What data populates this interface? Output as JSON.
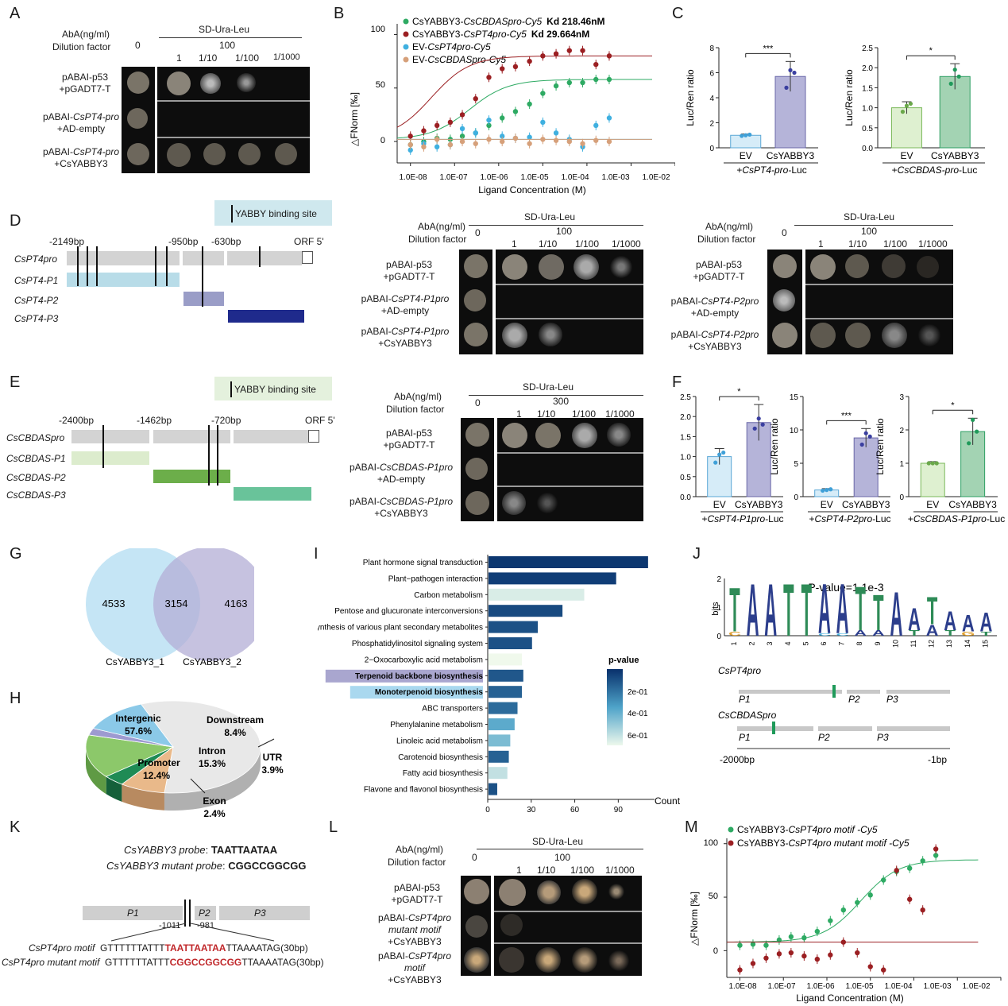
{
  "panel_labels": {
    "A": "A",
    "B": "B",
    "C": "C",
    "D": "D",
    "E": "E",
    "F": "F",
    "G": "G",
    "H": "H",
    "I": "I",
    "J": "J",
    "K": "K",
    "L": "L",
    "M": "M"
  },
  "yeast_headers": {
    "aba": "AbA(ng/ml)",
    "dil": "Dilution factor",
    "media": "SD-Ura-Leu",
    "d0": "0",
    "d1": "1",
    "d2": "1/10",
    "d3": "1/100",
    "d4": "1/1000"
  },
  "panelA": {
    "conc": "100",
    "r1a": "pABAI-p53",
    "r1b": "+pGADT7-T",
    "r2a_pre": "pABAI-",
    "r2a_it": "CsPT4-pro",
    "r2b": "+AD-empty",
    "r3a_pre": "pABAI-",
    "r3a_it": "CsPT4-pro",
    "r3b": "+CsYABBY3"
  },
  "panelB": {
    "legend": [
      {
        "prefix": "CsYABBY3-",
        "it": "CsCBDASpro-Cy5",
        "kd": "Kd 218.46nM",
        "color": "#2eaa63"
      },
      {
        "prefix": "CsYABBY3-",
        "it": "CsPT4pro-Cy5",
        "kd": "Kd 29.664nM",
        "color": "#9b1f22"
      },
      {
        "prefix": "EV-",
        "it": "CsPT4pro-Cy5",
        "kd": "",
        "color": "#3fb0e0"
      },
      {
        "prefix": "EV-",
        "it": "CsCBDASpro-Cy5",
        "kd": "",
        "color": "#d6a07a"
      }
    ],
    "ylabel": "△FNorm [‰]",
    "xlabel": "Ligand Concentration (M)",
    "yticks": [
      "0",
      "50",
      "100"
    ],
    "xticks": [
      "1.0E-08",
      "1.0E-07",
      "1.0E-06",
      "1.0E-05",
      "1.0E-04",
      "1.0E-03",
      "1.0E-02"
    ]
  },
  "panelC": {
    "ylabel": "Luc/Ren ratio",
    "ev": "EV",
    "yab": "CsYABBY3",
    "c1": {
      "sig": "***",
      "yticks": [
        "0",
        "2",
        "4",
        "6",
        "8"
      ],
      "sub_pre": "+",
      "sub_it": "CsPT4-pro",
      "sub_post": "-Luc"
    },
    "c2": {
      "sig": "*",
      "yticks": [
        "0.0",
        "0.5",
        "1.0",
        "1.5",
        "2.0",
        "2.5"
      ],
      "sub_pre": "+",
      "sub_it": "CsCBDAS-pro",
      "sub_post": "-Luc"
    }
  },
  "panelD": {
    "binding": "YABBY binding site",
    "p1": "-2149bp",
    "p2": "-950bp",
    "p3": "-630bp",
    "orf": "ORF 5'",
    "row0": "CsPT4pro",
    "row1": "CsPT4-P1",
    "row2": "CsPT4-P2",
    "row3": "CsPT4-P3",
    "conc": "100",
    "y1": {
      "r2a_pre": "pABAI-",
      "r2a_it": "CsPT4-P1pro",
      "r3a_pre": "pABAI-",
      "r3a_it": "CsPT4-P1pro"
    },
    "y2": {
      "r2a_pre": "pABAI-",
      "r2a_it": "CsPT4-P2pro",
      "r3a_pre": "pABAI-",
      "r3a_it": "CsPT4-P2pro"
    }
  },
  "panelE": {
    "binding": "YABBY binding site",
    "p1": "-2400bp",
    "p2": "-1462bp",
    "p3": "-720bp",
    "orf": "ORF 5'",
    "row0": "CsCBDASpro",
    "row1": "CsCBDAS-P1",
    "row2": "CsCBDAS-P2",
    "row3": "CsCBDAS-P3",
    "conc": "300",
    "r2a_pre": "pABAI-",
    "r2a_it": "CsCBDAS-P1pro",
    "r3a_pre": "pABAI-",
    "r3a_it": "CsCBDAS-P1pro"
  },
  "panelF": {
    "f1": {
      "sig": "*",
      "yticks": [
        "0.0",
        "0.5",
        "1.0",
        "1.5",
        "2.0",
        "2.5"
      ],
      "sub_it": "CsPT4-P1pro"
    },
    "f2": {
      "sig": "***",
      "yticks": [
        "0",
        "5",
        "10",
        "15"
      ],
      "sub_it": "CsPT4-P2pro"
    },
    "f3": {
      "sig": "*",
      "yticks": [
        "0",
        "1",
        "2",
        "3"
      ],
      "sub_it": "CsCBDAS-P1pro"
    }
  },
  "panelG": {
    "left": "4533",
    "mid": "3154",
    "right": "4163",
    "l1": "CsYABBY3_1",
    "l2": "CsYABBY3_2"
  },
  "panelH": {
    "inter": "Intergenic",
    "inter_v": "57.6%",
    "down": "Downstream",
    "down_v": "8.4%",
    "intron": "Intron",
    "intron_v": "15.3%",
    "utr": "UTR",
    "utr_v": "3.9%",
    "prom": "Promoter",
    "prom_v": "12.4%",
    "exon": "Exon",
    "exon_v": "2.4%"
  },
  "panelI": {
    "xlabel": "Count",
    "legend_title": "p-value",
    "legend_ticks": [
      "2e-01",
      "4e-01",
      "6e-01"
    ],
    "xticks": [
      "0",
      "30",
      "60",
      "90"
    ]
  },
  "panelJ": {
    "title": "P-value=1.1e-3",
    "ylabel": "bits",
    "row1": "CsPT4pro",
    "row2": "CsCBDASpro",
    "p1": "P1",
    "p2": "P2",
    "p3": "P3",
    "left": "-2000bp",
    "right": "-1bp"
  },
  "panelK": {
    "probe_it": "CsYABBY3 probe",
    "probe_seq": "TAATTAATAA",
    "mut_it": "CsYABBY3 mutant probe",
    "mut_seq": "CGGCCGGCGG",
    "p1": "P1",
    "p2": "P2",
    "p3": "P3",
    "n1": "-1011",
    "n2": "-981",
    "m_label": "CsPT4pro motif",
    "m_pre": "GTTTTTTATTT",
    "m_core": "TAATTAATAA",
    "m_post": "TTAAAATAG(30bp)",
    "mm_label": "CsPT4pro mutant motif",
    "mm_pre": "GTTTTTTATTT",
    "mm_core": "CGGCCGGCGG",
    "mm_post": "TTAAAATAG(30bp)"
  },
  "panelL": {
    "conc": "100",
    "r2a_pre": "pABAI-",
    "r2a_it": "CsPT4pro",
    "r2b_it": "mutant motif",
    "r3a_pre": "pABAI-",
    "r3a_it": "CsPT4pro",
    "r3b_it": "motif"
  },
  "panelM": {
    "legend": [
      {
        "prefix": "CsYABBY3-",
        "it": "CsPT4pro motif -Cy5",
        "color": "#2eaa63"
      },
      {
        "prefix": "CsYABBY3-",
        "it": "CsPT4pro mutant motif -Cy5",
        "color": "#9b1f22"
      }
    ],
    "ylabel": "△FNorm [‰]",
    "xlabel": "Ligand Concentration (M)",
    "yticks": [
      "0",
      "50",
      "100"
    ],
    "xticks": [
      "1.0E-08",
      "1.0E-07",
      "1.0E-06",
      "1.0E-05",
      "1.0E-04",
      "1.0E-03",
      "1.0E-02"
    ]
  },
  "chart_data": [
    {
      "type": "scatter",
      "title": "",
      "xlabel": "Ligand Concentration (M)",
      "ylabel": "△FNorm [‰]",
      "xscale": "log",
      "xlim": [
        5e-09,
        0.01
      ],
      "ylim": [
        -20,
        110
      ],
      "series": [
        {
          "name": "CsYABBY3-CsCBDASpro-Cy5",
          "fit": {
            "kd": 2.1846e-07,
            "bottom": 2,
            "top": 58
          },
          "x": [
            1e-08,
            2e-08,
            4e-08,
            8e-08,
            1.5e-07,
            3e-07,
            6e-07,
            1.2e-06,
            2.4e-06,
            5e-06,
            1e-05,
            2e-05,
            4e-05,
            8e-05,
            0.00016,
            0.00032
          ],
          "y": [
            -3,
            0,
            3,
            2,
            5,
            8,
            15,
            22,
            28,
            35,
            45,
            52,
            55,
            55,
            58,
            58
          ]
        },
        {
          "name": "CsYABBY3-CsPT4pro-Cy5",
          "fit": {
            "kd": 2.9664e-08,
            "bottom": 2,
            "top": 80
          },
          "x": [
            1e-08,
            2e-08,
            4e-08,
            8e-08,
            1.5e-07,
            3e-07,
            6e-07,
            1.2e-06,
            2.4e-06,
            5e-06,
            1e-05,
            2e-05,
            4e-05,
            8e-05,
            0.00016,
            0.00032
          ],
          "y": [
            5,
            10,
            15,
            18,
            25,
            40,
            60,
            68,
            70,
            75,
            80,
            82,
            85,
            85,
            72,
            80
          ]
        },
        {
          "name": "EV-CsPT4pro-Cy5",
          "x": [
            1e-08,
            2e-08,
            4e-08,
            8e-08,
            1.5e-07,
            3e-07,
            6e-07,
            1.2e-06,
            2.4e-06,
            5e-06,
            1e-05,
            2e-05,
            4e-05,
            8e-05,
            0.00016,
            0.00032
          ],
          "y": [
            -8,
            -2,
            -5,
            -3,
            12,
            8,
            20,
            5,
            3,
            4,
            18,
            8,
            2,
            -5,
            15,
            22
          ]
        },
        {
          "name": "EV-CsCBDASpro-Cy5",
          "x": [
            1e-08,
            2e-08,
            4e-08,
            8e-08,
            1.5e-07,
            3e-07,
            6e-07,
            1.2e-06,
            2.4e-06,
            5e-06,
            1e-05,
            2e-05,
            4e-05,
            8e-05,
            0.00016,
            0.00032
          ],
          "y": [
            -3,
            -5,
            2,
            -3,
            0,
            -2,
            2,
            0,
            3,
            -2,
            2,
            1,
            0,
            -2,
            1,
            0
          ]
        }
      ]
    },
    {
      "type": "bar",
      "title": "",
      "xlabel": "+CsPT4-pro-Luc",
      "ylabel": "Luc/Ren ratio",
      "ylim": [
        0,
        8
      ],
      "categories": [
        "EV",
        "CsYABBY3"
      ],
      "values": [
        1.0,
        5.7
      ],
      "errors": [
        0.1,
        1.2
      ],
      "points": [
        [
          0.95,
          1.0,
          1.05
        ],
        [
          4.8,
          6.2,
          6.0
        ]
      ]
    },
    {
      "type": "bar",
      "title": "",
      "xlabel": "+CsCBDAS-pro-Luc",
      "ylabel": "Luc/Ren ratio",
      "ylim": [
        0,
        2.5
      ],
      "categories": [
        "EV",
        "CsYABBY3"
      ],
      "values": [
        1.0,
        1.78
      ],
      "errors": [
        0.15,
        0.32
      ],
      "points": [
        [
          0.9,
          1.05,
          1.1
        ],
        [
          1.6,
          1.95,
          1.78
        ]
      ]
    },
    {
      "type": "bar",
      "title": "",
      "xlabel": "+CsPT4-P1pro-Luc",
      "ylabel": "Luc/Ren ratio",
      "ylim": [
        0,
        2.5
      ],
      "categories": [
        "EV",
        "CsYABBY3"
      ],
      "values": [
        1.0,
        1.85
      ],
      "errors": [
        0.2,
        0.45
      ],
      "points": [
        [
          0.85,
          1.05,
          1.1
        ],
        [
          1.7,
          1.95,
          1.8
        ]
      ]
    },
    {
      "type": "bar",
      "title": "",
      "xlabel": "+CsPT4-P2pro-Luc",
      "ylabel": "Luc/Ren ratio",
      "ylim": [
        0,
        15
      ],
      "categories": [
        "EV",
        "CsYABBY3"
      ],
      "values": [
        1.0,
        8.8
      ],
      "errors": [
        0.2,
        1.4
      ],
      "points": [
        [
          0.9,
          1.0,
          1.1
        ],
        [
          7.8,
          9.5,
          9.0
        ]
      ]
    },
    {
      "type": "bar",
      "title": "",
      "xlabel": "+CsCBDAS-P1pro-Luc",
      "ylabel": "Luc/Ren ratio",
      "ylim": [
        0,
        3
      ],
      "categories": [
        "EV",
        "CsYABBY3"
      ],
      "values": [
        1.0,
        1.95
      ],
      "errors": [
        0.05,
        0.4
      ],
      "points": [
        [
          1.0,
          1.0,
          1.0
        ],
        [
          1.6,
          2.3,
          1.95
        ]
      ]
    },
    {
      "type": "pie",
      "title": "",
      "categories": [
        "Intergenic",
        "Downstream",
        "UTR",
        "Intron",
        "Exon",
        "Promoter"
      ],
      "values": [
        57.6,
        8.4,
        3.9,
        15.3,
        2.4,
        12.4
      ]
    },
    {
      "type": "bar",
      "title": "",
      "xlabel": "Count",
      "ylabel": "",
      "orientation": "horizontal",
      "categories": [
        "Plant hormone signal transduction",
        "Plant−pathogen interaction",
        "Carbon metabolism",
        "Pentose and glucuronate interconversions",
        "Biosynthesis of various plant secondary metabolites",
        "Phosphatidylinositol signaling system",
        "2−Oxocarboxylic acid metabolism",
        "Terpenoid backbone biosynthesis",
        "Monoterpenoid biosynthesis",
        "ABC transporters",
        "Phenylalanine metabolism",
        "Linoleic acid metabolism",
        "Carotenoid biosynthesis",
        "Fatty acid biosynthesis",
        "Flavone and flavonol biosynthesis"
      ],
      "values": [
        110,
        88,
        66,
        51,
        34,
        30,
        23,
        24,
        23,
        20,
        18,
        15,
        14,
        13,
        6
      ],
      "pvalue": [
        0.02,
        0.04,
        0.65,
        0.08,
        0.1,
        0.1,
        0.7,
        0.12,
        0.15,
        0.18,
        0.38,
        0.45,
        0.15,
        0.6,
        0.1
      ]
    },
    {
      "type": "scatter",
      "title": "",
      "xlabel": "Ligand Concentration (M)",
      "ylabel": "△FNorm [‰]",
      "xscale": "log",
      "xlim": [
        5e-09,
        0.01
      ],
      "ylim": [
        -25,
        105
      ],
      "series": [
        {
          "name": "CsYABBY3-CsPT4pro motif -Cy5",
          "fit": {
            "kd": 6e-06,
            "bottom": 8,
            "top": 85
          },
          "x": [
            1e-08,
            2e-08,
            4e-08,
            8e-08,
            1.5e-07,
            3e-07,
            6e-07,
            1.2e-06,
            2.4e-06,
            5e-06,
            1e-05,
            2e-05,
            4e-05,
            8e-05,
            0.00016,
            0.00032
          ],
          "y": [
            5,
            6,
            5,
            10,
            13,
            12,
            18,
            28,
            38,
            45,
            52,
            66,
            74,
            77,
            84,
            89
          ]
        },
        {
          "name": "CsYABBY3-CsPT4pro mutant motif -Cy5",
          "x": [
            1e-08,
            2e-08,
            4e-08,
            8e-08,
            1.5e-07,
            3e-07,
            6e-07,
            1.2e-06,
            2.4e-06,
            5e-06,
            1e-05,
            2e-05,
            4e-05,
            8e-05,
            0.00016,
            0.00032
          ],
          "y": [
            -18,
            -12,
            -7,
            -3,
            -2,
            -5,
            -8,
            -4,
            8,
            -2,
            -15,
            -18,
            75,
            48,
            38,
            95
          ]
        }
      ]
    }
  ]
}
